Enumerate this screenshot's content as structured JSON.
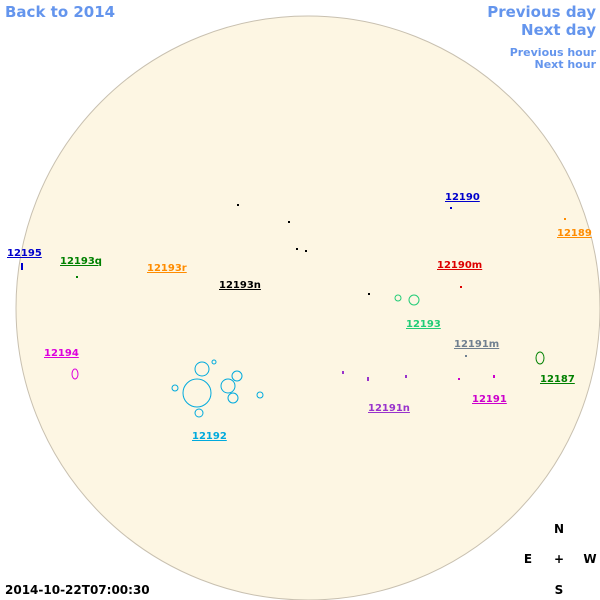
{
  "nav": {
    "back": "Back to 2014",
    "previous_day": "Previous day",
    "next_day": "Next day",
    "previous_hour": "Previous hour",
    "next_hour": "Next hour"
  },
  "regions": [
    {
      "label": "12195",
      "color": "#0000cc"
    },
    {
      "label": "12193q",
      "color": "#008000"
    },
    {
      "label": "12193r",
      "color": "#ff8c00"
    },
    {
      "label": "12193n",
      "color": "#000000"
    },
    {
      "label": "12190",
      "color": "#0000cc"
    },
    {
      "label": "12189",
      "color": "#ff8c00"
    },
    {
      "label": "12190m",
      "color": "#dd0000"
    },
    {
      "label": "12193",
      "color": "#22cc77"
    },
    {
      "label": "12191m",
      "color": "#708090"
    },
    {
      "label": "12194",
      "color": "#dd00dd"
    },
    {
      "label": "12187",
      "color": "#008000"
    },
    {
      "label": "12191",
      "color": "#cc00cc"
    },
    {
      "label": "12191n",
      "color": "#9933cc"
    },
    {
      "label": "12192",
      "color": "#00aadd"
    }
  ],
  "compass": {
    "north": "N",
    "east": "E",
    "center": "+",
    "west": "W",
    "south": "S"
  },
  "timestamp": "2014-10-22T07:00:30"
}
